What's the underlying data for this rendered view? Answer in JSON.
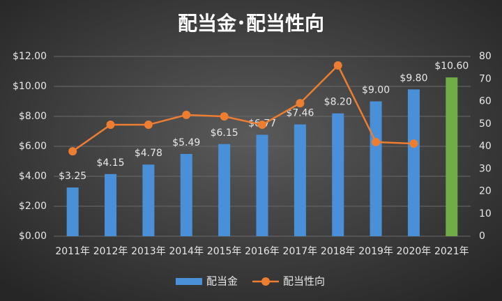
{
  "chart_data": {
    "type": "bar_line",
    "title": "配当金･配当性向",
    "categories": [
      "2011年",
      "2012年",
      "2013年",
      "2014年",
      "2015年",
      "2016年",
      "2017年",
      "2018年",
      "2019年",
      "2020年",
      "2021年"
    ],
    "series": [
      {
        "name": "配当金",
        "type": "bar",
        "axis": "y",
        "color": "#4a90d9",
        "colors": [
          "#4a90d9",
          "#4a90d9",
          "#4a90d9",
          "#4a90d9",
          "#4a90d9",
          "#4a90d9",
          "#4a90d9",
          "#4a90d9",
          "#4a90d9",
          "#4a90d9",
          "#70ad47"
        ],
        "values": [
          3.25,
          4.15,
          4.78,
          5.49,
          6.15,
          6.77,
          7.46,
          8.2,
          9.0,
          9.8,
          10.6
        ],
        "value_labels": [
          "$3.25",
          "$4.15",
          "$4.78",
          "$5.49",
          "$6.15",
          "$6.77",
          "$7.46",
          "$8.20",
          "$9.00",
          "$9.80",
          "$10.60"
        ]
      },
      {
        "name": "配当性向",
        "type": "line",
        "axis": "y2",
        "color": "#ed7d31",
        "values": [
          37.8,
          49.6,
          49.6,
          54,
          53.3,
          49.6,
          59.2,
          76,
          41.9,
          41.2,
          null
        ]
      }
    ],
    "ylim": [
      0,
      12
    ],
    "yticks": [
      {
        "value": 0,
        "label": "$0.00"
      },
      {
        "value": 2,
        "label": "$2.00"
      },
      {
        "value": 4,
        "label": "$4.00"
      },
      {
        "value": 6,
        "label": "$6.00"
      },
      {
        "value": 8,
        "label": "$8.00"
      },
      {
        "value": 10,
        "label": "$10.00"
      },
      {
        "value": 12,
        "label": "$12.00"
      }
    ],
    "y2lim": [
      0,
      80
    ],
    "y2ticks": [
      0,
      10,
      20,
      30,
      40,
      50,
      60,
      70,
      80
    ],
    "grid": true,
    "legend": "bottom"
  }
}
